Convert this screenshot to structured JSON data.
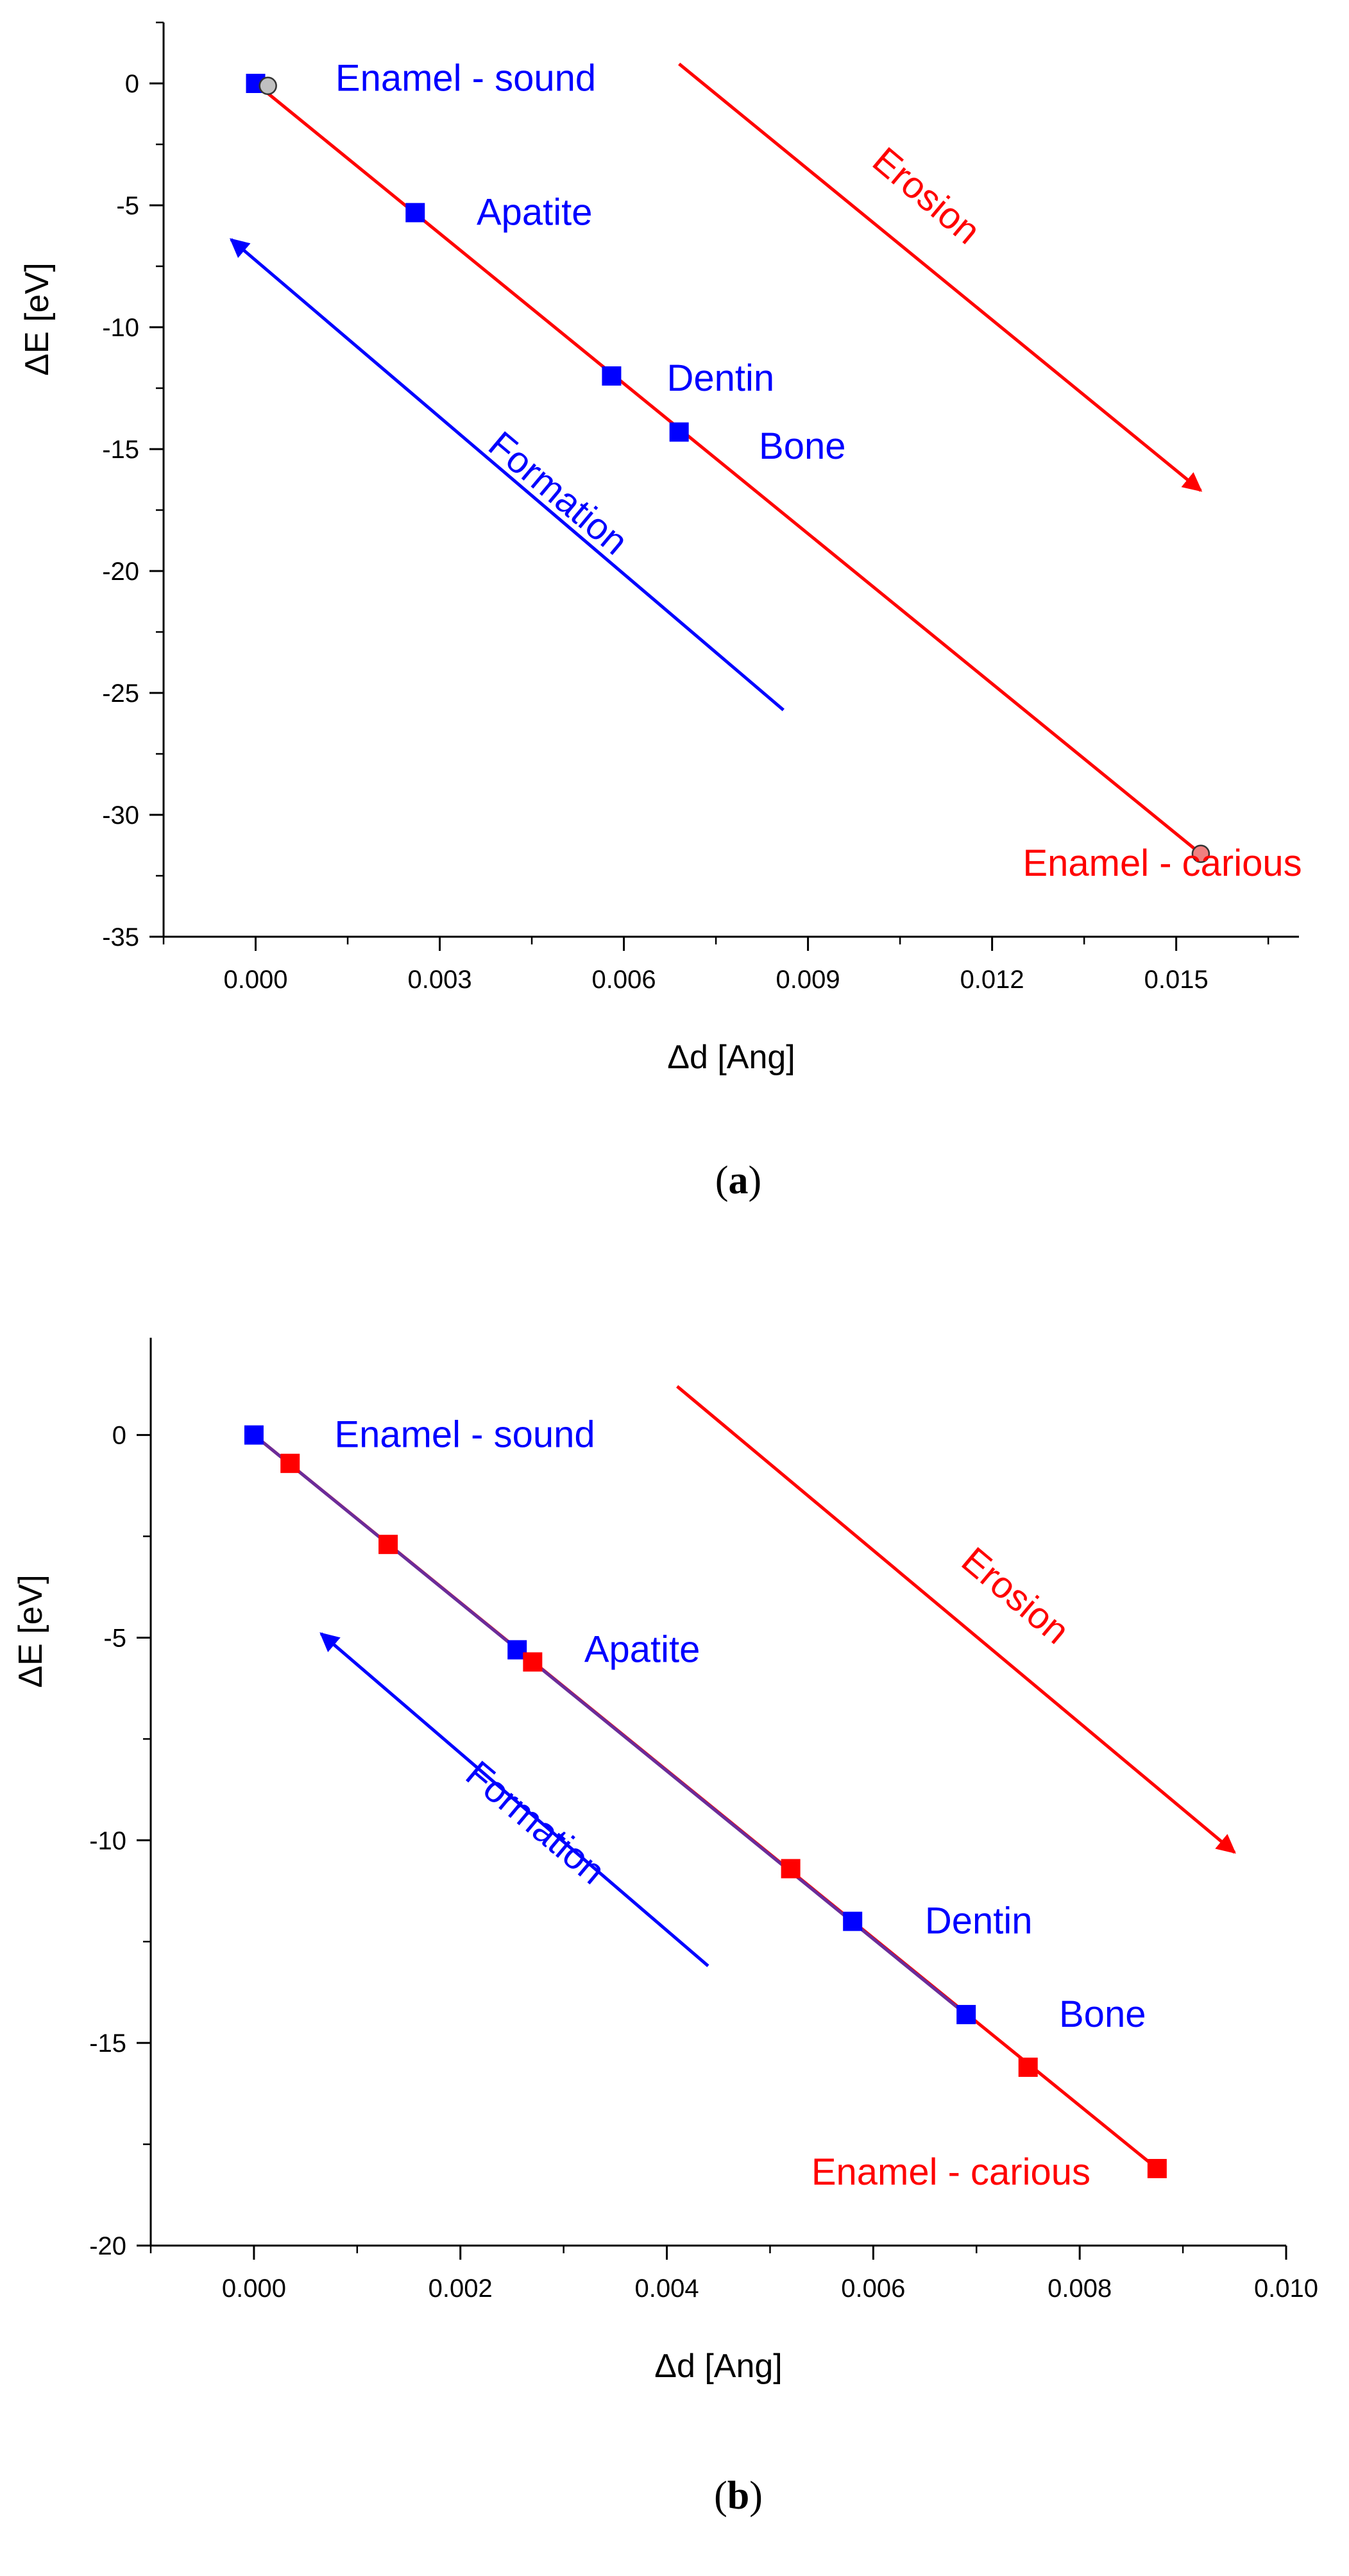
{
  "chart_data": [
    {
      "panel_label_open": "(",
      "panel_label_letter": "a",
      "panel_label_close": ")",
      "type": "scatter",
      "xlabel": "Δd [Ang]",
      "ylabel": "ΔE [eV]",
      "xlim": [
        -0.0015,
        0.017
      ],
      "ylim": [
        -35,
        2.5
      ],
      "xticks": [
        0.0,
        0.003,
        0.006,
        0.009,
        0.012,
        0.015
      ],
      "xtick_labels": [
        "0.000",
        "0.003",
        "0.006",
        "0.009",
        "0.012",
        "0.015"
      ],
      "yticks": [
        0,
        -5,
        -10,
        -15,
        -20,
        -25,
        -30,
        -35
      ],
      "ytick_labels": [
        "0",
        "-5",
        "-10",
        "-15",
        "-20",
        "-25",
        "-30",
        "-35"
      ],
      "series": [
        {
          "name": "blue-squares",
          "color": "#0000ff",
          "marker": "square",
          "points": [
            [
              0.0,
              0.0
            ],
            [
              0.0026,
              -5.3
            ],
            [
              0.0058,
              -12.0
            ],
            [
              0.0069,
              -14.3
            ]
          ]
        },
        {
          "name": "grey-circles",
          "color": "#c0c0c0",
          "marker": "circle",
          "points": [
            [
              0.0002,
              -0.1
            ]
          ]
        },
        {
          "name": "pink-circles",
          "color": "#f08080",
          "marker": "circle",
          "points": [
            [
              0.0154,
              -31.6
            ]
          ]
        }
      ],
      "lines": [
        {
          "name": "fit-line",
          "color": "#ff0000",
          "from": [
            0.0,
            0.0
          ],
          "to": [
            0.0154,
            -31.6
          ],
          "arrow": false
        }
      ],
      "arrows": [
        {
          "name": "formation",
          "color": "#0000ff",
          "from": [
            0.0086,
            -25.7
          ],
          "to": [
            -0.0004,
            -6.4
          ]
        },
        {
          "name": "erosion",
          "color": "#ff0000",
          "from": [
            0.0069,
            0.8
          ],
          "to": [
            0.0154,
            -16.7
          ]
        }
      ],
      "annotations": [
        {
          "name": "enamel-sound",
          "text": "Enamel - sound",
          "color": "#0000ff",
          "x": 0.0013,
          "y": -0.3,
          "rotate": 0
        },
        {
          "name": "apatite",
          "text": "Apatite",
          "color": "#0000ff",
          "x": 0.0036,
          "y": -5.8,
          "rotate": 0
        },
        {
          "name": "dentin",
          "text": "Dentin",
          "color": "#0000ff",
          "x": 0.0067,
          "y": -12.6,
          "rotate": 0
        },
        {
          "name": "bone",
          "text": "Bone",
          "color": "#0000ff",
          "x": 0.0082,
          "y": -15.4,
          "rotate": 0
        },
        {
          "name": "enamel-carious",
          "text": "Enamel - carious",
          "color": "#ff0000",
          "x": 0.0125,
          "y": -32.5,
          "rotate": 0
        },
        {
          "name": "formation-label",
          "text": "Formation",
          "color": "#0000ff",
          "x": 0.0048,
          "y": -17.2,
          "rotate": 40
        },
        {
          "name": "erosion-label",
          "text": "Erosion",
          "color": "#ff0000",
          "x": 0.0108,
          "y": -5.0,
          "rotate": 40
        }
      ]
    },
    {
      "panel_label_open": "(",
      "panel_label_letter": "b",
      "panel_label_close": ")",
      "type": "scatter",
      "xlabel": "Δd [Ang]",
      "ylabel": "ΔE [eV]",
      "xlim": [
        -0.001,
        0.01
      ],
      "ylim": [
        -20,
        2.4
      ],
      "xticks": [
        0.0,
        0.002,
        0.004,
        0.006,
        0.008,
        0.01
      ],
      "xtick_labels": [
        "0.000",
        "0.002",
        "0.004",
        "0.006",
        "0.008",
        "0.010"
      ],
      "yticks": [
        0,
        -5,
        -10,
        -15,
        -20
      ],
      "ytick_labels": [
        "0",
        "-5",
        "-10",
        "-15",
        "-20"
      ],
      "series": [
        {
          "name": "blue-squares",
          "color": "#0000ff",
          "marker": "square",
          "points": [
            [
              0.0,
              0.0
            ],
            [
              0.00255,
              -5.3
            ],
            [
              0.0058,
              -12.0
            ],
            [
              0.0069,
              -14.3
            ]
          ]
        },
        {
          "name": "red-squares",
          "color": "#ff0000",
          "marker": "square",
          "points": [
            [
              0.00035,
              -0.7
            ],
            [
              0.0013,
              -2.7
            ],
            [
              0.0027,
              -5.6
            ],
            [
              0.0052,
              -10.7
            ],
            [
              0.0075,
              -15.6
            ],
            [
              0.00875,
              -18.1
            ]
          ]
        }
      ],
      "lines": [
        {
          "name": "fit-line-red",
          "color": "#ff0000",
          "from": [
            0.0,
            0.0
          ],
          "to": [
            0.00875,
            -18.1
          ],
          "arrow": false
        },
        {
          "name": "fit-line-purple",
          "color": "#6a2c9a",
          "from": [
            0.0,
            0.0
          ],
          "to": [
            0.0069,
            -14.3
          ],
          "arrow": false
        }
      ],
      "arrows": [
        {
          "name": "formation",
          "color": "#0000ff",
          "from": [
            0.0044,
            -13.1
          ],
          "to": [
            0.00065,
            -4.9
          ]
        },
        {
          "name": "erosion",
          "color": "#ff0000",
          "from": [
            0.0041,
            1.2
          ],
          "to": [
            0.0095,
            -10.3
          ]
        }
      ],
      "annotations": [
        {
          "name": "enamel-sound",
          "text": "Enamel - sound",
          "color": "#0000ff",
          "x": 0.00078,
          "y": -0.3,
          "rotate": 0
        },
        {
          "name": "apatite",
          "text": "Apatite",
          "color": "#0000ff",
          "x": 0.0032,
          "y": -5.6,
          "rotate": 0
        },
        {
          "name": "dentin",
          "text": "Dentin",
          "color": "#0000ff",
          "x": 0.0065,
          "y": -12.3,
          "rotate": 0
        },
        {
          "name": "bone",
          "text": "Bone",
          "color": "#0000ff",
          "x": 0.0078,
          "y": -14.6,
          "rotate": 0
        },
        {
          "name": "enamel-carious",
          "text": "Enamel - carious",
          "color": "#ff0000",
          "x": 0.0054,
          "y": -18.5,
          "rotate": 0
        },
        {
          "name": "formation-label",
          "text": "Formation",
          "color": "#0000ff",
          "x": 0.00265,
          "y": -9.8,
          "rotate": 40
        },
        {
          "name": "erosion-label",
          "text": "Erosion",
          "color": "#ff0000",
          "x": 0.0073,
          "y": -4.2,
          "rotate": 40
        }
      ]
    }
  ]
}
